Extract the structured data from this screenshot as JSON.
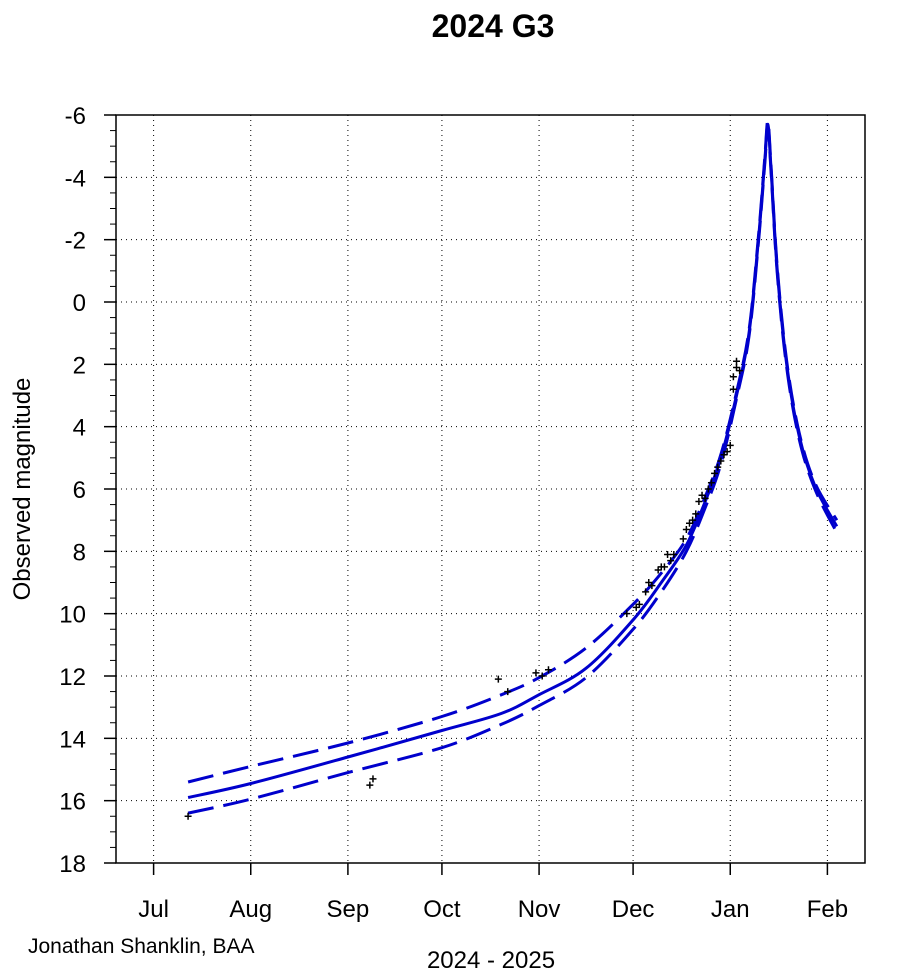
{
  "chart_data": {
    "type": "line",
    "title": "2024 G3",
    "xlabel": "2024 - 2025",
    "ylabel": "Observed magnitude",
    "credit": "Jonathan Shanklin, BAA",
    "x_axis": {
      "min": "2024-06-19",
      "max": "2025-02-13",
      "ticks": [
        {
          "date": "2024-07-01",
          "label": "Jul"
        },
        {
          "date": "2024-08-01",
          "label": "Aug"
        },
        {
          "date": "2024-09-01",
          "label": "Sep"
        },
        {
          "date": "2024-10-01",
          "label": "Oct"
        },
        {
          "date": "2024-11-01",
          "label": "Nov"
        },
        {
          "date": "2024-12-01",
          "label": "Dec"
        },
        {
          "date": "2025-01-01",
          "label": "Jan"
        },
        {
          "date": "2025-02-01",
          "label": "Feb"
        }
      ]
    },
    "y_axis": {
      "min": -6,
      "max": 18,
      "reversed": true,
      "ticks": [
        -6,
        -4,
        -2,
        0,
        2,
        4,
        6,
        8,
        10,
        12,
        14,
        16,
        18
      ],
      "tick_labels": [
        "-6",
        "-4",
        "-2",
        "0",
        "2",
        "4",
        "6",
        "8",
        "10",
        "12",
        "14",
        "16",
        "18"
      ]
    },
    "grid": true,
    "series": [
      {
        "style": "solid",
        "color": "#0000cc",
        "points": [
          [
            "2024-07-12",
            15.9
          ],
          [
            "2024-08-01",
            15.45
          ],
          [
            "2024-09-01",
            14.6
          ],
          [
            "2024-10-01",
            13.75
          ],
          [
            "2024-10-20",
            13.2
          ],
          [
            "2024-11-01",
            12.6
          ],
          [
            "2024-11-16",
            11.75
          ],
          [
            "2024-12-01",
            10.2
          ],
          [
            "2024-12-10",
            9.0
          ],
          [
            "2024-12-18",
            7.8
          ],
          [
            "2024-12-24",
            6.4
          ],
          [
            "2024-12-29",
            5.0
          ],
          [
            "2025-01-03",
            3.0
          ],
          [
            "2025-01-07",
            1.0
          ],
          [
            "2025-01-10",
            -2.0
          ],
          [
            "2025-01-12",
            -4.5
          ],
          [
            "2025-01-13",
            -5.7
          ],
          [
            "2025-01-14",
            -4.3
          ],
          [
            "2025-01-16",
            -1.0
          ],
          [
            "2025-01-19",
            2.0
          ],
          [
            "2025-01-23",
            4.3
          ],
          [
            "2025-01-28",
            5.9
          ],
          [
            "2025-02-04",
            7.2
          ]
        ]
      },
      {
        "style": "dashed",
        "color": "#0000cc",
        "points": [
          [
            "2024-07-12",
            15.4
          ],
          [
            "2024-08-01",
            14.9
          ],
          [
            "2024-09-01",
            14.15
          ],
          [
            "2024-10-01",
            13.3
          ],
          [
            "2024-10-20",
            12.6
          ],
          [
            "2024-11-01",
            12.05
          ],
          [
            "2024-11-16",
            11.1
          ],
          [
            "2024-12-01",
            9.7
          ],
          [
            "2024-12-10",
            8.7
          ],
          [
            "2024-12-18",
            7.6
          ],
          [
            "2024-12-24",
            6.25
          ],
          [
            "2024-12-29",
            4.9
          ],
          [
            "2025-01-03",
            2.9
          ],
          [
            "2025-01-07",
            0.9
          ],
          [
            "2025-01-10",
            -2.1
          ],
          [
            "2025-01-12",
            -4.6
          ],
          [
            "2025-01-13",
            -5.8
          ],
          [
            "2025-01-14",
            -4.4
          ],
          [
            "2025-01-16",
            -1.1
          ],
          [
            "2025-01-19",
            1.9
          ],
          [
            "2025-01-23",
            4.2
          ],
          [
            "2025-01-28",
            5.8
          ],
          [
            "2025-02-04",
            7.0
          ]
        ]
      },
      {
        "style": "dashed",
        "color": "#0000cc",
        "points": [
          [
            "2024-07-12",
            16.4
          ],
          [
            "2024-08-01",
            15.95
          ],
          [
            "2024-09-01",
            15.1
          ],
          [
            "2024-10-01",
            14.3
          ],
          [
            "2024-10-20",
            13.55
          ],
          [
            "2024-11-01",
            12.95
          ],
          [
            "2024-11-16",
            12.05
          ],
          [
            "2024-12-01",
            10.5
          ],
          [
            "2024-12-10",
            9.3
          ],
          [
            "2024-12-18",
            8.0
          ],
          [
            "2024-12-24",
            6.6
          ],
          [
            "2024-12-29",
            5.2
          ],
          [
            "2025-01-03",
            3.1
          ],
          [
            "2025-01-07",
            1.1
          ],
          [
            "2025-01-10",
            -1.9
          ],
          [
            "2025-01-12",
            -4.4
          ],
          [
            "2025-01-13",
            -5.6
          ],
          [
            "2025-01-14",
            -4.2
          ],
          [
            "2025-01-16",
            -0.9
          ],
          [
            "2025-01-19",
            2.1
          ],
          [
            "2025-01-23",
            4.4
          ],
          [
            "2025-01-28",
            6.0
          ],
          [
            "2025-02-04",
            7.4
          ]
        ]
      }
    ],
    "observations": [
      [
        "2024-07-12",
        16.5
      ],
      [
        "2024-09-08",
        15.5
      ],
      [
        "2024-09-09",
        15.3
      ],
      [
        "2024-10-19",
        12.1
      ],
      [
        "2024-10-22",
        12.5
      ],
      [
        "2024-10-31",
        11.9
      ],
      [
        "2024-11-02",
        12.0
      ],
      [
        "2024-11-04",
        11.8
      ],
      [
        "2024-11-29",
        10.0
      ],
      [
        "2024-12-02",
        9.8
      ],
      [
        "2024-12-03",
        9.7
      ],
      [
        "2024-12-05",
        9.3
      ],
      [
        "2024-12-06",
        9.0
      ],
      [
        "2024-12-07",
        9.1
      ],
      [
        "2024-12-09",
        8.6
      ],
      [
        "2024-12-10",
        8.5
      ],
      [
        "2024-12-11",
        8.5
      ],
      [
        "2024-12-12",
        8.1
      ],
      [
        "2024-12-13",
        8.3
      ],
      [
        "2024-12-14",
        8.1
      ],
      [
        "2024-12-17",
        7.6
      ],
      [
        "2024-12-18",
        7.3
      ],
      [
        "2024-12-19",
        7.1
      ],
      [
        "2024-12-20",
        7.0
      ],
      [
        "2024-12-21",
        6.8
      ],
      [
        "2024-12-22",
        6.4
      ],
      [
        "2024-12-23",
        6.2
      ],
      [
        "2024-12-24",
        6.3
      ],
      [
        "2024-12-25",
        6.0
      ],
      [
        "2024-12-26",
        5.8
      ],
      [
        "2024-12-27",
        5.5
      ],
      [
        "2024-12-28",
        5.3
      ],
      [
        "2024-12-29",
        5.1
      ],
      [
        "2024-12-30",
        4.9
      ],
      [
        "2024-12-31",
        4.8
      ],
      [
        "2025-01-01",
        4.6
      ],
      [
        "2025-01-02",
        2.8
      ],
      [
        "2025-01-02",
        2.4
      ],
      [
        "2025-01-03",
        2.1
      ],
      [
        "2025-01-03",
        1.9
      ],
      [
        "2025-01-04",
        2.2
      ]
    ]
  }
}
